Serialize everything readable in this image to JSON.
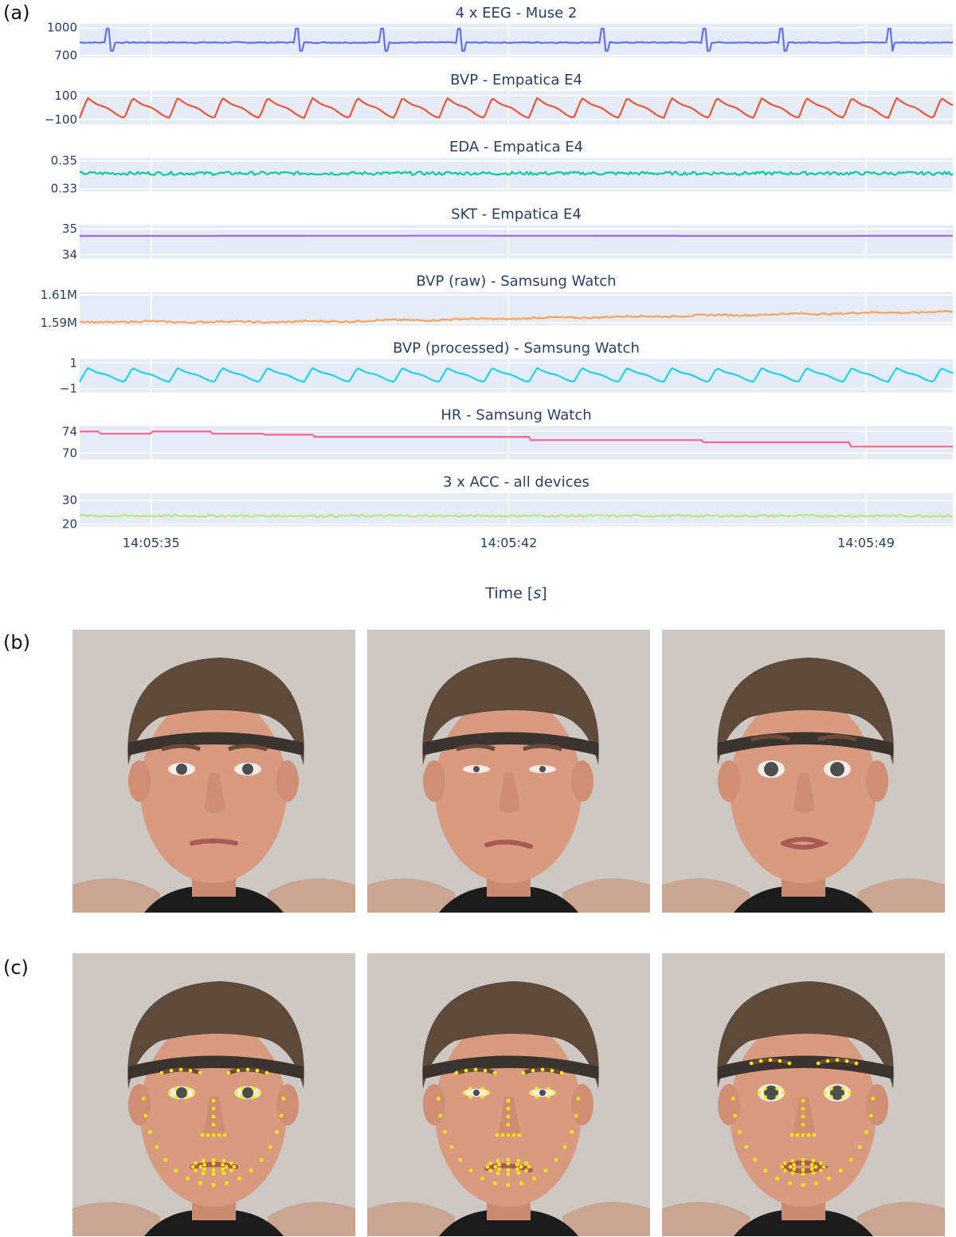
{
  "panel_labels": {
    "a": "(a)",
    "b": "(b)",
    "c": "(c)"
  },
  "chart_data": {
    "type": "line",
    "x_label_prefix": "Time [",
    "x_label_italic": "s",
    "x_label_suffix": "]",
    "x_ticks": [
      "14:05:35",
      "14:05:42",
      "14:05:49"
    ],
    "x_range_seconds": [
      33.6,
      50.7
    ],
    "x_tick_seconds": [
      35,
      42,
      49
    ],
    "grid": true,
    "series": [
      {
        "name": "4 x EEG - Muse 2",
        "color": "#636efa",
        "yticks": [
          "1000",
          "700"
        ],
        "ytick_values": [
          1000,
          700
        ],
        "ylim": [
          680,
          1040
        ],
        "pattern": "spiky",
        "base": 840,
        "noise": 12,
        "spikes": [
          34.1,
          37.8,
          39.5,
          41.0,
          43.8,
          45.8,
          47.3,
          49.4
        ],
        "spike_up": 150,
        "spike_down": 90
      },
      {
        "name": "BVP - Empatica E4",
        "color": "#ef553b",
        "yticks": [
          "100",
          "−100"
        ],
        "ytick_values": [
          100,
          -100
        ],
        "ylim": [
          -140,
          140
        ],
        "pattern": "wave",
        "period": 0.88,
        "amp": 85,
        "center": -5
      },
      {
        "name": "EDA - Empatica E4",
        "color": "#00cc96",
        "yticks": [
          "0.35",
          "0.33"
        ],
        "ytick_values": [
          0.35,
          0.33
        ],
        "ylim": [
          0.328,
          0.352
        ],
        "pattern": "jitter",
        "base": 0.341,
        "noise": 0.0012
      },
      {
        "name": "SKT - Empatica E4",
        "color": "#ab63fa",
        "yticks": [
          "35",
          "34"
        ],
        "ytick_values": [
          35,
          34
        ],
        "ylim": [
          33.85,
          35.15
        ],
        "pattern": "flat",
        "base": 34.73
      },
      {
        "name": "BVP (raw) - Samsung Watch",
        "color": "#ffa15a",
        "yticks": [
          "1.61M",
          "1.59M"
        ],
        "ytick_values": [
          1610000,
          1590000
        ],
        "ylim": [
          1588000,
          1612000
        ],
        "pattern": "drift",
        "start": 1590600,
        "end": 1598000,
        "noise": 600
      },
      {
        "name": "BVP (processed) - Samsung Watch",
        "color": "#19d3f3",
        "yticks": [
          "1",
          "−1"
        ],
        "ytick_values": [
          1,
          -1
        ],
        "ylim": [
          -1.3,
          1.3
        ],
        "pattern": "wave",
        "period": 0.88,
        "amp": 0.55,
        "center": 0.05
      },
      {
        "name": "HR - Samsung Watch",
        "color": "#ff6692",
        "yticks": [
          "74",
          "70"
        ],
        "ytick_values": [
          74,
          70
        ],
        "ylim": [
          68.8,
          75.0
        ],
        "pattern": "steps",
        "steps": [
          [
            33.6,
            74
          ],
          [
            34.0,
            73.6
          ],
          [
            35.0,
            74
          ],
          [
            36.2,
            73.6
          ],
          [
            37.2,
            73.4
          ],
          [
            38.2,
            73.0
          ],
          [
            42.4,
            72.4
          ],
          [
            45.8,
            72.0
          ],
          [
            48.7,
            71.2
          ]
        ]
      },
      {
        "name": "3 x ACC - all devices",
        "color": "#b6e880",
        "yticks": [
          "30",
          "20"
        ],
        "ytick_values": [
          30,
          20
        ],
        "ylim": [
          19,
          33
        ],
        "pattern": "jitter",
        "base": 23.5,
        "noise": 0.45
      }
    ]
  },
  "photos": {
    "row_b": [
      {
        "expression": "neutral"
      },
      {
        "expression": "disgust"
      },
      {
        "expression": "surprise"
      }
    ],
    "row_c": [
      {
        "expression": "neutral",
        "landmarks": true
      },
      {
        "expression": "disgust",
        "landmarks": true
      },
      {
        "expression": "surprise",
        "landmarks": true
      }
    ],
    "colors": {
      "background": "#cdc8c4",
      "skin": "#d89b7f",
      "hair": "#5e4a3b",
      "band": "#3b3330",
      "shirt": "#1c1c1c",
      "landmark": "#ffee00"
    }
  }
}
